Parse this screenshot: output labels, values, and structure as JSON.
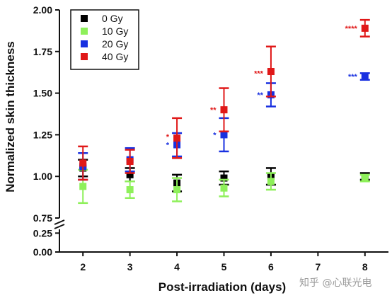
{
  "chart_data": {
    "type": "scatter",
    "xlabel": "Post-irradiation (days)",
    "ylabel": "Normalized skin thickness",
    "x_ticks": [
      2,
      3,
      4,
      5,
      6,
      7,
      8
    ],
    "y_ticks_upper": [
      "0.75",
      "1.00",
      "1.25",
      "1.50",
      "1.75",
      "2.00"
    ],
    "y_ticks_lower": [
      "0.00",
      "0.25"
    ],
    "ylim_upper": [
      0.75,
      2.0
    ],
    "ylim_lower": [
      0.0,
      0.3
    ],
    "xlim": [
      1.5,
      8.5
    ],
    "axis_break": true,
    "legend_position": "top-left",
    "series": [
      {
        "name": "0 Gy",
        "color": "#000000",
        "points": [
          {
            "x": 2,
            "y": 1.05,
            "err": 0.05
          },
          {
            "x": 3,
            "y": 1.01,
            "err": 0.04
          },
          {
            "x": 4,
            "y": 0.96,
            "err": 0.05
          },
          {
            "x": 5,
            "y": 0.99,
            "err": 0.04
          },
          {
            "x": 6,
            "y": 1.0,
            "err": 0.05
          },
          {
            "x": 8,
            "y": 1.0,
            "err": 0.02
          }
        ]
      },
      {
        "name": "10 Gy",
        "color": "#8ef05a",
        "points": [
          {
            "x": 2,
            "y": 0.94,
            "err": 0.1
          },
          {
            "x": 3,
            "y": 0.92,
            "err": 0.05
          },
          {
            "x": 4,
            "y": 0.92,
            "err": 0.07
          },
          {
            "x": 5,
            "y": 0.93,
            "err": 0.05
          },
          {
            "x": 6,
            "y": 0.97,
            "err": 0.05
          },
          {
            "x": 8,
            "y": 0.99,
            "err": 0.02
          }
        ]
      },
      {
        "name": "20 Gy",
        "color": "#1830e0",
        "points": [
          {
            "x": 2,
            "y": 1.06,
            "err": 0.08
          },
          {
            "x": 3,
            "y": 1.1,
            "err": 0.07
          },
          {
            "x": 4,
            "y": 1.19,
            "err": 0.07
          },
          {
            "x": 5,
            "y": 1.25,
            "err": 0.1
          },
          {
            "x": 6,
            "y": 1.49,
            "err": 0.07
          },
          {
            "x": 8,
            "y": 1.6,
            "err": 0.02
          }
        ]
      },
      {
        "name": "40 Gy",
        "color": "#e01818",
        "points": [
          {
            "x": 2,
            "y": 1.08,
            "err": 0.1
          },
          {
            "x": 3,
            "y": 1.09,
            "err": 0.07
          },
          {
            "x": 4,
            "y": 1.23,
            "err": 0.12
          },
          {
            "x": 5,
            "y": 1.4,
            "err": 0.13
          },
          {
            "x": 6,
            "y": 1.63,
            "err": 0.15
          },
          {
            "x": 8,
            "y": 1.89,
            "err": 0.05
          }
        ]
      }
    ],
    "annotations": [
      {
        "x": 4,
        "y": 1.24,
        "text": "*",
        "color": "#e01818"
      },
      {
        "x": 4,
        "y": 1.19,
        "text": "*",
        "color": "#1830e0"
      },
      {
        "x": 5,
        "y": 1.4,
        "text": "**",
        "color": "#e01818"
      },
      {
        "x": 5,
        "y": 1.25,
        "text": "*",
        "color": "#1830e0"
      },
      {
        "x": 6,
        "y": 1.62,
        "text": "***",
        "color": "#e01818"
      },
      {
        "x": 6,
        "y": 1.49,
        "text": "**",
        "color": "#1830e0"
      },
      {
        "x": 8,
        "y": 1.89,
        "text": "****",
        "color": "#e01818"
      },
      {
        "x": 8,
        "y": 1.6,
        "text": "***",
        "color": "#1830e0"
      }
    ]
  },
  "watermark": {
    "text": "知乎 @心联光电",
    "icon": "zhihu-logo"
  }
}
